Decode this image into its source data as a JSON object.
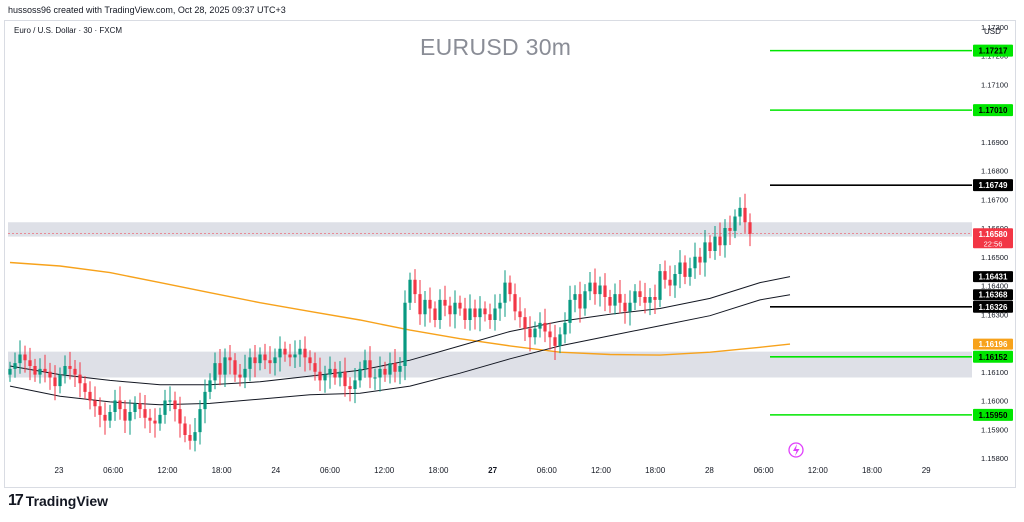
{
  "header": {
    "credit": "hussoss96 created with TradingView.com, Oct 28, 2025 09:37 UTC+3",
    "symbol": "Euro / U.S. Dollar · 30 · FXCM",
    "currency": "USD"
  },
  "branding": {
    "logo_text": "TradingView",
    "logo_icon": "tradingview-logo-icon"
  },
  "chart_data": {
    "type": "candlestick",
    "title": "EURUSD 30m",
    "ylim": [
      1.158,
      1.1732
    ],
    "y_ticks": [
      "1.17300",
      "1.17200",
      "1.17100",
      "1.17000",
      "1.16900",
      "1.16800",
      "1.16700",
      "1.16600",
      "1.16500",
      "1.16400",
      "1.16300",
      "1.16200",
      "1.16100",
      "1.16000",
      "1.15900",
      "1.15800"
    ],
    "x_ticks": [
      "23",
      "06:00",
      "12:00",
      "18:00",
      "24",
      "06:00",
      "12:00",
      "18:00",
      "27",
      "06:00",
      "12:00",
      "18:00",
      "28",
      "06:00",
      "12:00",
      "18:00",
      "29"
    ],
    "zones": [
      {
        "from": 1.1657,
        "to": 1.1662,
        "color": "#d8dbe3"
      },
      {
        "from": 1.1608,
        "to": 1.1617,
        "color": "#d8dbe3"
      }
    ],
    "levels": [
      {
        "price": 1.17217,
        "label": "1.17217",
        "color": "#00e600",
        "label_color": "#000000"
      },
      {
        "price": 1.1701,
        "label": "1.17010",
        "color": "#00e600",
        "label_color": "#000000"
      },
      {
        "price": 1.16749,
        "label": "1.16749",
        "color": "#000000",
        "label_color": "#ffffff"
      },
      {
        "price": 1.16326,
        "label": "1.16326",
        "color": "#000000",
        "label_color": "#ffffff"
      },
      {
        "price": 1.16152,
        "label": "1.16152",
        "color": "#00e600",
        "label_color": "#000000"
      },
      {
        "price": 1.1595,
        "label": "1.15950",
        "color": "#00e600",
        "label_color": "#000000"
      }
    ],
    "price_tags": [
      {
        "price": 1.1658,
        "label": "1.16580",
        "sub": "22:56",
        "color": "#f23645"
      },
      {
        "price": 1.16431,
        "label": "1.16431",
        "color": "#000000"
      },
      {
        "price": 1.16368,
        "label": "1.16368",
        "color": "#000000"
      },
      {
        "price": 1.16196,
        "label": "1.16196",
        "color": "#f7a21b"
      }
    ],
    "last_price": 1.1658,
    "candles_close": [
      1.1611,
      1.1613,
      1.1616,
      1.1614,
      1.1612,
      1.1609,
      1.1611,
      1.161,
      1.1608,
      1.1605,
      1.1609,
      1.1612,
      1.1611,
      1.1609,
      1.1606,
      1.1603,
      1.16,
      1.1598,
      1.1595,
      1.1593,
      1.1596,
      1.16,
      1.1597,
      1.1593,
      1.1596,
      1.1599,
      1.1597,
      1.1594,
      1.1593,
      1.1592,
      1.1595,
      1.16,
      1.16,
      1.1597,
      1.1592,
      1.1588,
      1.1586,
      1.1589,
      1.1597,
      1.1603,
      1.1607,
      1.1613,
      1.1609,
      1.1615,
      1.1614,
      1.1609,
      1.1608,
      1.1611,
      1.1615,
      1.1613,
      1.1616,
      1.1614,
      1.1613,
      1.1615,
      1.1618,
      1.1616,
      1.1615,
      1.1616,
      1.1618,
      1.1615,
      1.1613,
      1.161,
      1.1607,
      1.1609,
      1.1611,
      1.1608,
      1.161,
      1.1605,
      1.1604,
      1.1607,
      1.1611,
      1.1614,
      1.1608,
      1.1608,
      1.1611,
      1.1609,
      1.1613,
      1.161,
      1.1612,
      1.1634,
      1.1642,
      1.1637,
      1.163,
      1.1635,
      1.1632,
      1.1628,
      1.1635,
      1.1633,
      1.163,
      1.1634,
      1.1632,
      1.1628,
      1.1632,
      1.1629,
      1.1632,
      1.163,
      1.1628,
      1.1632,
      1.1634,
      1.1641,
      1.1637,
      1.1631,
      1.1629,
      1.1625,
      1.1622,
      1.1625,
      1.1627,
      1.1624,
      1.1622,
      1.1619,
      1.1623,
      1.1627,
      1.1635,
      1.1637,
      1.1632,
      1.1638,
      1.1641,
      1.1637,
      1.164,
      1.1636,
      1.1633,
      1.1637,
      1.1634,
      1.1631,
      1.1634,
      1.1638,
      1.1636,
      1.1634,
      1.1636,
      1.1635,
      1.1645,
      1.1642,
      1.164,
      1.1644,
      1.1648,
      1.1643,
      1.1646,
      1.165,
      1.1648,
      1.1655,
      1.1652,
      1.1657,
      1.1654,
      1.166,
      1.1659,
      1.1664,
      1.1667,
      1.1662,
      1.1658
    ],
    "ema_slow": {
      "color": "#f7a21b",
      "points": [
        [
          0,
          1.1648
        ],
        [
          10,
          1.16468
        ],
        [
          20,
          1.16445
        ],
        [
          30,
          1.1641
        ],
        [
          40,
          1.16375
        ],
        [
          50,
          1.1634
        ],
        [
          60,
          1.1631
        ],
        [
          70,
          1.1628
        ],
        [
          80,
          1.16245
        ],
        [
          90,
          1.16215
        ],
        [
          100,
          1.1619
        ],
        [
          110,
          1.16168
        ],
        [
          120,
          1.1616
        ],
        [
          130,
          1.16158
        ],
        [
          140,
          1.16168
        ],
        [
          150,
          1.16185
        ],
        [
          156,
          1.16196
        ]
      ]
    },
    "ma_1": {
      "color": "#131722",
      "points": [
        [
          0,
          1.1612
        ],
        [
          10,
          1.1609
        ],
        [
          20,
          1.1607
        ],
        [
          30,
          1.16055
        ],
        [
          40,
          1.16055
        ],
        [
          50,
          1.16065
        ],
        [
          60,
          1.16085
        ],
        [
          70,
          1.16105
        ],
        [
          80,
          1.1614
        ],
        [
          90,
          1.1619
        ],
        [
          100,
          1.1624
        ],
        [
          110,
          1.16275
        ],
        [
          120,
          1.163
        ],
        [
          130,
          1.1632
        ],
        [
          140,
          1.16355
        ],
        [
          150,
          1.1641
        ],
        [
          156,
          1.16431
        ]
      ]
    },
    "ma_2": {
      "color": "#131722",
      "points": [
        [
          0,
          1.1605
        ],
        [
          10,
          1.16015
        ],
        [
          20,
          1.15995
        ],
        [
          30,
          1.15985
        ],
        [
          40,
          1.1599
        ],
        [
          50,
          1.16005
        ],
        [
          60,
          1.1602
        ],
        [
          70,
          1.16025
        ],
        [
          80,
          1.1605
        ],
        [
          90,
          1.16095
        ],
        [
          100,
          1.16145
        ],
        [
          110,
          1.1619
        ],
        [
          120,
          1.16225
        ],
        [
          130,
          1.1626
        ],
        [
          140,
          1.16295
        ],
        [
          150,
          1.1635
        ],
        [
          156,
          1.16368
        ]
      ]
    }
  }
}
